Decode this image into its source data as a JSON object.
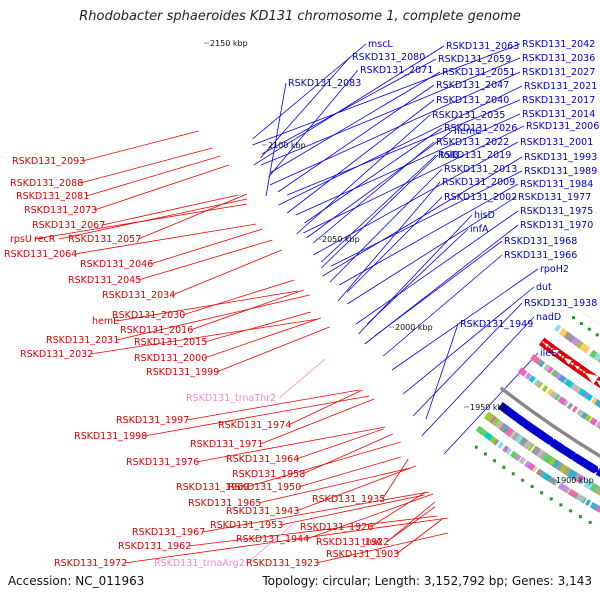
{
  "title": "Rhodobacter sphaeroides KD131 chromosome 1, complete genome",
  "footer": {
    "accession": "Accession: NC_011963",
    "summary": "Topology: circular; Length: 3,152,792 bp; Genes: 3,143"
  },
  "colors": {
    "forward": "#dd0000",
    "reverse": "#0000cc",
    "rna": "#ee88cc",
    "backbone": "#888888"
  },
  "ticks": [
    "2150 kbp",
    "2100 kbp",
    "2050 kbp",
    "2000 kbp",
    "1950 kbp",
    "1900 kbp"
  ],
  "right_labels": [
    "mscL",
    "RSKD131_2080",
    "RSKD131_2071",
    "RSKD131_2083",
    "RSKD131_2063",
    "RSKD131_2059",
    "RSKD131_2051",
    "RSKD131_2047",
    "RSKD131_2040",
    "RSKD131_2035",
    "RSKD131_2026",
    "RSKD131_2022",
    "RSKD131_2019",
    "RSKD131_2013",
    "RSKD131_2009",
    "RSKD131_2002",
    "RSKD131_2042",
    "RSKD131_2036",
    "RSKD131_2027",
    "RSKD131_2021",
    "RSKD131_2017",
    "RSKD131_2014",
    "RSKD131_2006",
    "RSKD131_2001",
    "RSKD131_1993",
    "RSKD131_1989",
    "RSKD131_1984",
    "RSKD131_1977",
    "RSKD131_1975",
    "RSKD131_1970",
    "RSKD131_1968",
    "RSKD131_1966",
    "hemC",
    "tolB",
    "hisD",
    "infA",
    "rpoH2",
    "dut",
    "RSKD131_1938",
    "nadD",
    "RSKD131_1949",
    "ileS"
  ],
  "left_labels": [
    "RSKD131_2093",
    "RSKD131_2088",
    "RSKD131_2081",
    "RSKD131_2073",
    "RSKD131_2067",
    "rpsU",
    "recR",
    "RSKD131_2057",
    "RSKD131_2064",
    "RSKD131_2046",
    "RSKD131_2045",
    "RSKD131_2034",
    "hemE",
    "RSKD131_2030",
    "RSKD131_2016",
    "RSKD131_2031",
    "RSKD131_2015",
    "RSKD131_2032",
    "RSKD131_2000",
    "RSKD131_1999",
    "RSKD131_1997",
    "RSKD131_1974",
    "RSKD131_1998",
    "RSKD131_1971",
    "RSKD131_1964",
    "RSKD131_1976",
    "RSKD131_1958",
    "RSKD131_1969",
    "RSKD131_1950",
    "RSKD131_1965",
    "RSKD131_1935",
    "RSKD131_1943",
    "RSKD131_1953",
    "RSKD131_1926",
    "RSKD131_1967",
    "RSKD131_1944",
    "RSKD131_1962",
    "RSKD131_1922",
    "truA",
    "RSKD131_1972",
    "RSKD131_1923",
    "RSKD131_1903"
  ],
  "rna_labels": [
    "RSKD131_trnaThr2",
    "RSKD131_trnaArg2"
  ]
}
